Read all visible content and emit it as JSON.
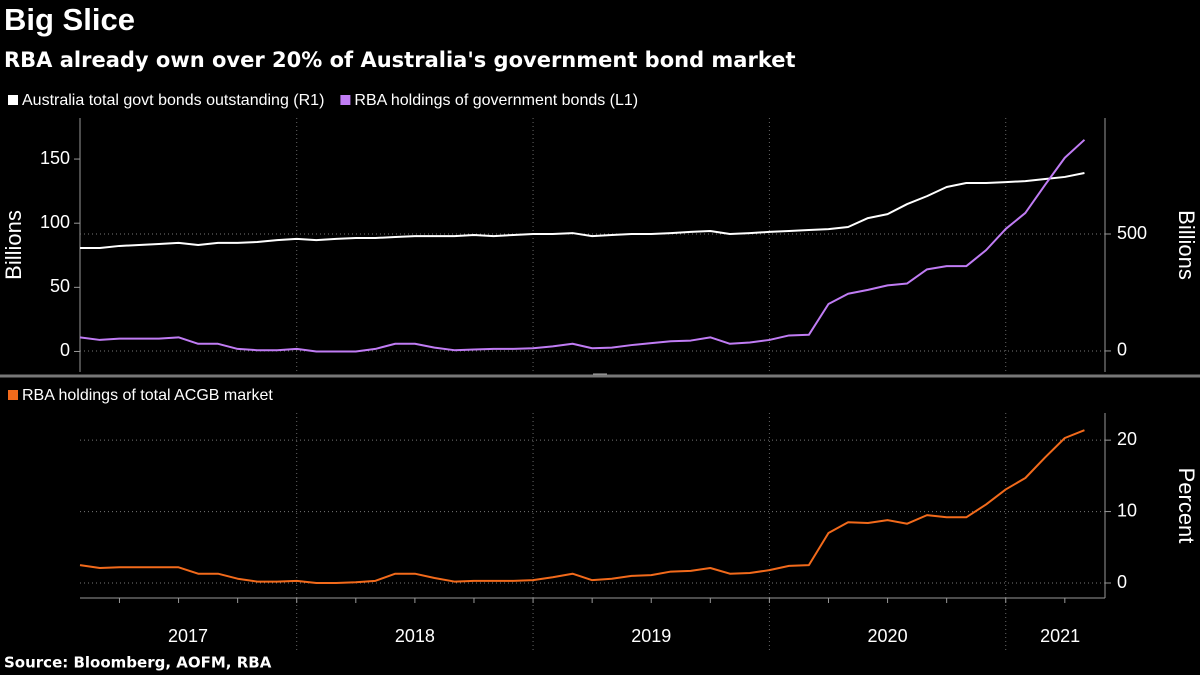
{
  "chart_data": [
    {
      "type": "line",
      "title": "Big Slice",
      "subtitle": "RBA already own over 20% of Australia's government bond market",
      "x": [
        2017.083,
        2017.167,
        2017.25,
        2017.333,
        2017.417,
        2017.5,
        2017.583,
        2017.667,
        2017.75,
        2017.833,
        2017.917,
        2018,
        2018.083,
        2018.167,
        2018.25,
        2018.333,
        2018.417,
        2018.5,
        2018.583,
        2018.667,
        2018.75,
        2018.833,
        2018.917,
        2019,
        2019.083,
        2019.167,
        2019.25,
        2019.333,
        2019.417,
        2019.5,
        2019.583,
        2019.667,
        2019.75,
        2019.833,
        2019.917,
        2020,
        2020.083,
        2020.167,
        2020.25,
        2020.333,
        2020.417,
        2020.5,
        2020.583,
        2020.667,
        2020.75,
        2020.833,
        2020.917,
        2021,
        2021.083,
        2021.167,
        2021.25,
        2021.333
      ],
      "series": [
        {
          "name": "Australia total govt bonds outstanding (R1)",
          "color": "#ffffff",
          "axis": "y2",
          "values": [
            440,
            440,
            449,
            453,
            457,
            462,
            453,
            462,
            462,
            466,
            474,
            479,
            474,
            479,
            483,
            483,
            487,
            491,
            491,
            491,
            496,
            491,
            496,
            500,
            500,
            504,
            491,
            496,
            500,
            500,
            504,
            509,
            513,
            500,
            504,
            509,
            513,
            517,
            521,
            530,
            568,
            585,
            628,
            662,
            701,
            718,
            718,
            722,
            726,
            735,
            744,
            761
          ]
        },
        {
          "name": "RBA holdings of government bonds (L1)",
          "color": "#c07cf4",
          "values": [
            11,
            9,
            10,
            10,
            10,
            11,
            6,
            6,
            2,
            1,
            1,
            2,
            0,
            0,
            0,
            2,
            6,
            6,
            3,
            1,
            1.5,
            2,
            2,
            2.5,
            4,
            6,
            2.5,
            3,
            5,
            6.5,
            8,
            8.5,
            11,
            6,
            7,
            9,
            12.5,
            13,
            37,
            45,
            48,
            51.5,
            53,
            64,
            66.5,
            66.5,
            79,
            95.5,
            108,
            130,
            151,
            165
          ]
        }
      ],
      "xlim": [
        2017.083,
        2021.42
      ],
      "xgrid_lines": [
        2018,
        2019,
        2020,
        2021
      ],
      "ylim": [
        -16,
        182
      ],
      "yticks": [
        0,
        50,
        100,
        150
      ],
      "ylabel": "Billions",
      "y2lim": [
        -90,
        996
      ],
      "y2ticks": [
        0,
        500
      ],
      "y2label": "Billions",
      "grid": "y2",
      "legend": "top-left"
    },
    {
      "type": "line",
      "x": [
        2017.083,
        2017.167,
        2017.25,
        2017.333,
        2017.417,
        2017.5,
        2017.583,
        2017.667,
        2017.75,
        2017.833,
        2017.917,
        2018,
        2018.083,
        2018.167,
        2018.25,
        2018.333,
        2018.417,
        2018.5,
        2018.583,
        2018.667,
        2018.75,
        2018.833,
        2018.917,
        2019,
        2019.083,
        2019.167,
        2019.25,
        2019.333,
        2019.417,
        2019.5,
        2019.583,
        2019.667,
        2019.75,
        2019.833,
        2019.917,
        2020,
        2020.083,
        2020.167,
        2020.25,
        2020.333,
        2020.417,
        2020.5,
        2020.583,
        2020.667,
        2020.75,
        2020.833,
        2020.917,
        2021,
        2021.083,
        2021.167,
        2021.25,
        2021.333
      ],
      "series": [
        {
          "name": "RBA holdings of total ACGB market",
          "color": "#f26a1b",
          "values": [
            2.5,
            2.1,
            2.2,
            2.2,
            2.2,
            2.2,
            1.3,
            1.3,
            0.6,
            0.2,
            0.2,
            0.3,
            0,
            0,
            0.1,
            0.3,
            1.3,
            1.3,
            0.7,
            0.2,
            0.3,
            0.3,
            0.3,
            0.4,
            0.8,
            1.3,
            0.4,
            0.6,
            1.0,
            1.1,
            1.6,
            1.7,
            2.1,
            1.3,
            1.4,
            1.8,
            2.4,
            2.5,
            7.0,
            8.5,
            8.4,
            8.8,
            8.3,
            9.5,
            9.2,
            9.2,
            11,
            13.1,
            14.7,
            17.6,
            20.3,
            21.4
          ]
        }
      ],
      "xlim": [
        2017.083,
        2021.42
      ],
      "xgrid_lines": [
        2018,
        2019,
        2020,
        2021
      ],
      "xticks": [
        {
          "value": 2017.54,
          "label": "2017"
        },
        {
          "value": 2018.5,
          "label": "2018"
        },
        {
          "value": 2019.5,
          "label": "2019"
        },
        {
          "value": 2020.5,
          "label": "2020"
        },
        {
          "value": 2021.23,
          "label": "2021"
        }
      ],
      "xminor_step": 0.25,
      "ylim": [
        -2.1,
        23.8
      ],
      "yticks": [
        0,
        10,
        20
      ],
      "ylabel": "Percent",
      "yaxis_side": "right",
      "grid": "y",
      "legend": "top-left",
      "source": "Source: Bloomberg, AOFM, RBA"
    }
  ]
}
